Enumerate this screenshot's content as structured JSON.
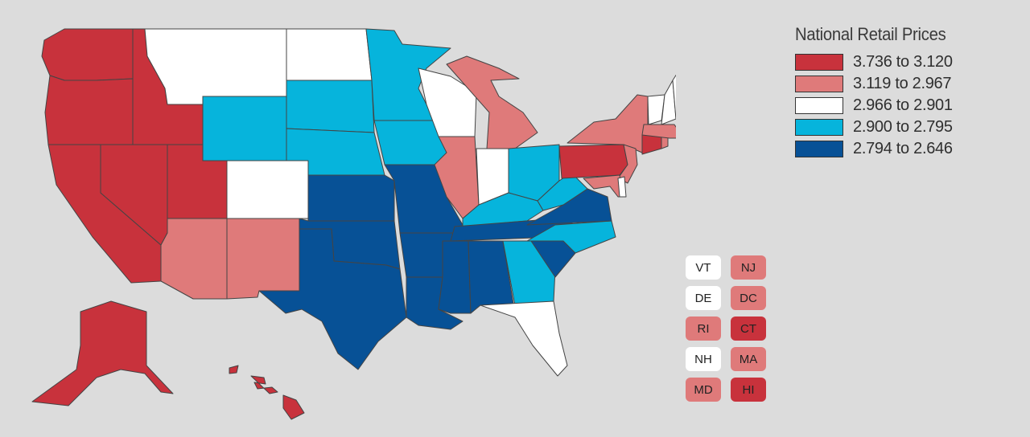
{
  "colors": {
    "r1": "#c8323c",
    "r2": "#df7a7a",
    "r3": "#ffffff",
    "r4": "#06b4dc",
    "r5": "#075196",
    "background": "#dcdcdc",
    "border": "#444444"
  },
  "legend": {
    "title": "National Retail Prices",
    "items": [
      {
        "label": "3.736 to 3.120",
        "color": "#c8323c"
      },
      {
        "label": "3.119 to 2.967",
        "color": "#df7a7a"
      },
      {
        "label": "2.966 to 2.901",
        "color": "#ffffff"
      },
      {
        "label": "2.900 to 2.795",
        "color": "#06b4dc"
      },
      {
        "label": "2.794 to 2.646",
        "color": "#075196"
      }
    ]
  },
  "small_states": [
    {
      "code": "VT",
      "range": "r3"
    },
    {
      "code": "NJ",
      "range": "r2"
    },
    {
      "code": "DE",
      "range": "r3"
    },
    {
      "code": "DC",
      "range": "r2"
    },
    {
      "code": "RI",
      "range": "r2"
    },
    {
      "code": "CT",
      "range": "r1"
    },
    {
      "code": "NH",
      "range": "r3"
    },
    {
      "code": "MA",
      "range": "r2"
    },
    {
      "code": "MD",
      "range": "r2"
    },
    {
      "code": "HI",
      "range": "r1"
    }
  ],
  "states": {
    "WA": "r1",
    "OR": "r1",
    "CA": "r1",
    "ID": "r1",
    "NV": "r1",
    "UT": "r1",
    "AK": "r1",
    "HI": "r1",
    "PA": "r1",
    "CT": "r1",
    "AZ": "r2",
    "NM": "r2",
    "MI": "r2",
    "IL": "r2",
    "NY": "r2",
    "NJ": "r2",
    "MD": "r2",
    "MA": "r2",
    "RI": "r2",
    "DC": "r2",
    "MT": "r3",
    "ND": "r3",
    "CO": "r3",
    "WI": "r3",
    "IN": "r3",
    "FL": "r3",
    "ME": "r3",
    "VT": "r3",
    "NH": "r3",
    "DE": "r3",
    "WY": "r4",
    "SD": "r4",
    "NE": "r4",
    "MN": "r4",
    "IA": "r4",
    "OH": "r4",
    "KY": "r4",
    "WV": "r4",
    "NC": "r4",
    "GA": "r4",
    "KS": "r5",
    "OK": "r5",
    "TX": "r5",
    "MO": "r5",
    "AR": "r5",
    "LA": "r5",
    "MS": "r5",
    "AL": "r5",
    "TN": "r5",
    "SC": "r5",
    "VA": "r5"
  }
}
